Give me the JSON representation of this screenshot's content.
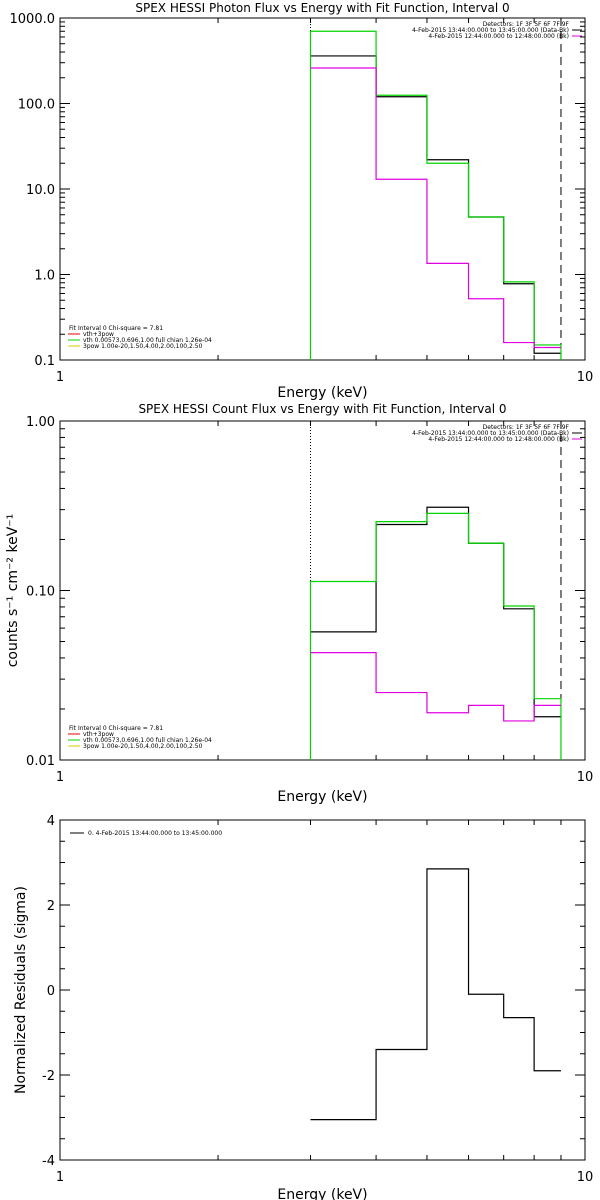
{
  "colors": {
    "data": "#000000",
    "model_total": "#00d400",
    "background": "#e000e0",
    "spec_marker": "#e60000",
    "vth": "#00d400",
    "bpow": "#d9c800"
  },
  "chart_data": [
    {
      "type": "line",
      "title": "SPEX HESSI Photon Flux vs Energy with Fit Function, Interval 0",
      "xlabel": "Energy (keV)",
      "ylabel": "",
      "xscale": "log",
      "yscale": "log",
      "xlim": [
        1,
        10
      ],
      "ylim": [
        0.1,
        1000
      ],
      "xticks": [
        {
          "v": 1,
          "label": "1"
        },
        {
          "v": 10,
          "label": "10"
        }
      ],
      "yticks": [
        {
          "v": 0.1,
          "label": "0.1"
        },
        {
          "v": 1,
          "label": "1.0"
        },
        {
          "v": 10,
          "label": "10.0"
        },
        {
          "v": 100,
          "label": "100.0"
        },
        {
          "v": 1000,
          "label": "1000.0"
        }
      ],
      "bin_edges": [
        3.0,
        4.0,
        5.0,
        6.0,
        7.0,
        8.0,
        9.0
      ],
      "series": [
        {
          "role": "data",
          "values": [
            360,
            120,
            22,
            4.7,
            0.78,
            0.12
          ]
        },
        {
          "role": "model",
          "values": [
            700,
            125,
            20,
            4.7,
            0.82,
            0.15
          ]
        },
        {
          "role": "background",
          "values": [
            260,
            13,
            1.35,
            0.52,
            0.16,
            0.14
          ]
        }
      ],
      "vlines": [
        {
          "x": 3.0,
          "style": "dotted"
        },
        {
          "x": 9.0,
          "style": "dashed"
        }
      ],
      "header": [
        "Detectors: 1F 3F 5F 6F 7F 9F",
        "4-Feb-2015 13:44:00.000 to 13:45:00.000 (Data-Bk)",
        "4-Feb-2015 12:44:00.000 to 12:48:00.000 (Bk)"
      ],
      "legend": [
        "Fit Interval 0   Chi-square = 7.81",
        "vth+3pow",
        "vth 0.00573,0.696,1.00  full chian 1.26e-04",
        "3pow 1.00e-20,1.50,4.00,2.00,100,2.50"
      ]
    },
    {
      "type": "line",
      "title": "SPEX HESSI Count Flux vs Energy with Fit Function, Interval 0",
      "xlabel": "Energy (keV)",
      "ylabel": "counts s⁻¹ cm⁻² keV⁻¹",
      "xscale": "log",
      "yscale": "log",
      "xlim": [
        1,
        10
      ],
      "ylim": [
        0.01,
        1.0
      ],
      "xticks": [
        {
          "v": 1,
          "label": "1"
        },
        {
          "v": 10,
          "label": "10"
        }
      ],
      "yticks": [
        {
          "v": 0.01,
          "label": "0.01"
        },
        {
          "v": 0.1,
          "label": "0.10"
        },
        {
          "v": 1.0,
          "label": "1.00"
        }
      ],
      "bin_edges": [
        3.0,
        4.0,
        5.0,
        6.0,
        7.0,
        8.0,
        9.0
      ],
      "series": [
        {
          "role": "data",
          "values": [
            0.057,
            0.245,
            0.31,
            0.19,
            0.078,
            0.018
          ]
        },
        {
          "role": "model",
          "values": [
            0.113,
            0.255,
            0.285,
            0.19,
            0.081,
            0.023
          ]
        },
        {
          "role": "background",
          "values": [
            0.043,
            0.025,
            0.019,
            0.021,
            0.017,
            0.021
          ]
        }
      ],
      "vlines": [
        {
          "x": 3.0,
          "style": "dotted"
        },
        {
          "x": 9.0,
          "style": "dashed"
        }
      ],
      "header": [
        "Detectors: 1F 3F 5F 6F 7F 9F",
        "4-Feb-2015 13:44:00.000 to 13:45:00.000 (Data-Bk)",
        "4-Feb-2015 12:44:00.000 to 12:48:00.000 (Bk)"
      ],
      "legend": [
        "Fit Interval 0   Chi-square = 7.81",
        "vth+3pow",
        "vth 0.00573,0.696,1.00  full chian 1.26e-04",
        "3pow 1.00e-20,1.50,4.00,2.00,100,2.50"
      ]
    },
    {
      "type": "line",
      "title": "",
      "xlabel": "Energy (keV)",
      "ylabel": "Normalized Residuals (sigma)",
      "xscale": "log",
      "yscale": "linear",
      "xlim": [
        1,
        10
      ],
      "ylim": [
        -4,
        4
      ],
      "xticks": [
        {
          "v": 1,
          "label": "1"
        },
        {
          "v": 10,
          "label": "10"
        }
      ],
      "yticks": [
        {
          "v": -4,
          "label": "-4"
        },
        {
          "v": -2,
          "label": "-2"
        },
        {
          "v": 0,
          "label": "0"
        },
        {
          "v": 2,
          "label": "2"
        },
        {
          "v": 4,
          "label": "4"
        }
      ],
      "bin_edges": [
        3.0,
        4.0,
        5.0,
        6.0,
        7.0,
        8.0,
        9.0
      ],
      "series": [
        {
          "role": "data",
          "values": [
            -3.05,
            -1.4,
            2.85,
            -0.1,
            -0.65,
            -1.9
          ]
        }
      ],
      "vlines": [],
      "header": [],
      "legend": [
        "0.  4-Feb-2015 13:44:00.000 to 13:45:00.000"
      ]
    }
  ]
}
